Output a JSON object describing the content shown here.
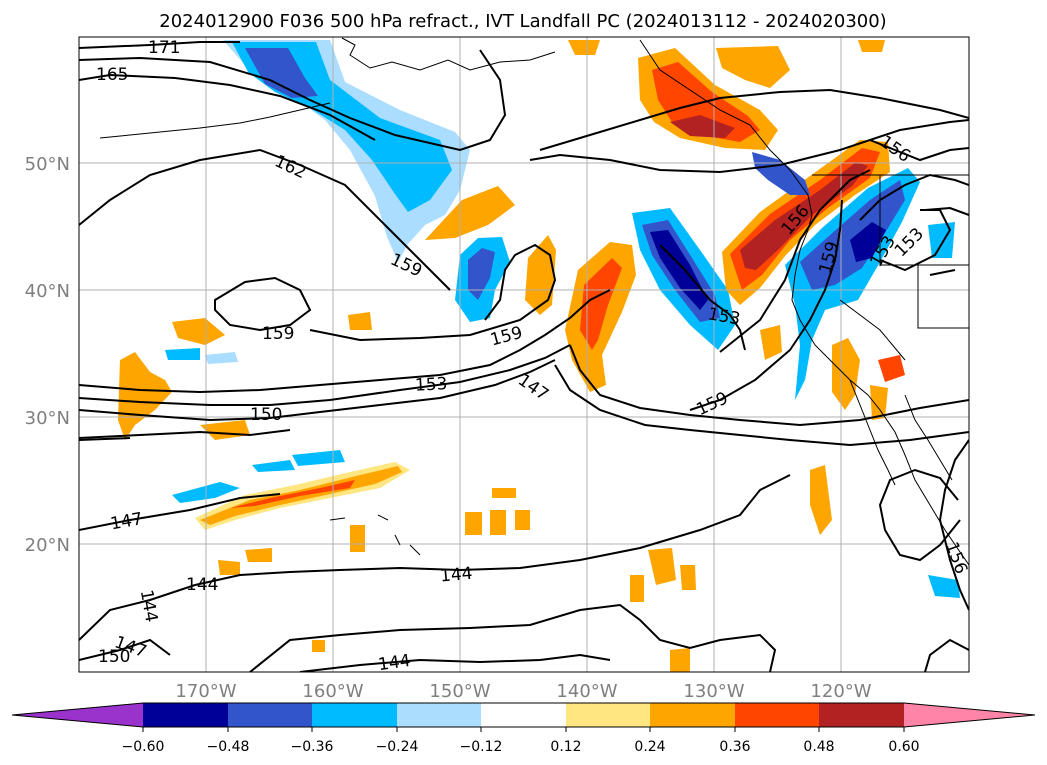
{
  "title": "2024012900 F036 500 hPa refract., IVT Landfall PC (2024013112 - 2024020300)",
  "map": {
    "lat_labels": [
      "50°N",
      "40°N",
      "30°N",
      "20°N"
    ],
    "lon_labels": [
      "170°W",
      "160°W",
      "150°W",
      "140°W",
      "130°W",
      "120°W"
    ],
    "contour_labels": [
      {
        "id": "c171",
        "text": "171"
      },
      {
        "id": "c165",
        "text": "165"
      },
      {
        "id": "c162",
        "text": "162"
      },
      {
        "id": "c159a",
        "text": "159"
      },
      {
        "id": "c159b",
        "text": "159"
      },
      {
        "id": "c159c",
        "text": "159"
      },
      {
        "id": "c159d",
        "text": "159"
      },
      {
        "id": "c159e",
        "text": "159"
      },
      {
        "id": "c156a",
        "text": "156"
      },
      {
        "id": "c156b",
        "text": "156"
      },
      {
        "id": "c156c",
        "text": "156"
      },
      {
        "id": "c153a",
        "text": "153"
      },
      {
        "id": "c153b",
        "text": "153"
      },
      {
        "id": "c153c",
        "text": "153"
      },
      {
        "id": "c153d",
        "text": "153"
      },
      {
        "id": "c150a",
        "text": "150"
      },
      {
        "id": "c150b",
        "text": "150"
      },
      {
        "id": "c147a",
        "text": "147"
      },
      {
        "id": "c147b",
        "text": "147"
      },
      {
        "id": "c147c",
        "text": "147"
      },
      {
        "id": "c144a",
        "text": "144"
      },
      {
        "id": "c144b",
        "text": "144"
      },
      {
        "id": "c144c",
        "text": "144"
      },
      {
        "id": "c144d",
        "text": "144"
      }
    ]
  },
  "colorbar": {
    "ticks": [
      "−0.60",
      "−0.48",
      "−0.36",
      "−0.24",
      "−0.12",
      "0.12",
      "0.24",
      "0.36",
      "0.48",
      "0.60"
    ],
    "colors": {
      "under": "#9933cc",
      "bin1": "#000099",
      "bin2": "#3355cc",
      "bin3": "#00bbff",
      "bin4": "#aaddff",
      "bin5": "#ffffff",
      "bin6": "#ffe680",
      "bin7": "#ffa500",
      "bin8": "#ff4500",
      "bin9": "#b22222",
      "over": "#ff85a8"
    }
  },
  "colors": {
    "grid": "#b0b0b0",
    "axis_text": "#7f7f7f",
    "contour": "#000000"
  }
}
